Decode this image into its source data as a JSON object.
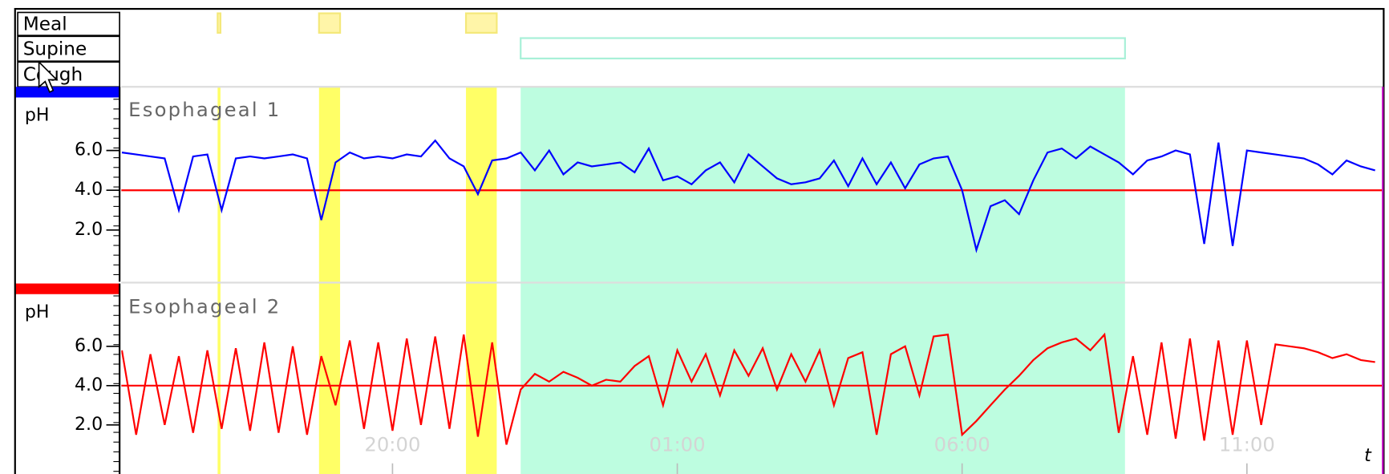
{
  "event_rows": [
    {
      "label": "Meal",
      "intervals": [
        [
          16.93,
          16.98
        ],
        [
          18.71,
          19.08
        ],
        [
          21.29,
          21.83
        ]
      ]
    },
    {
      "label": "Supine",
      "intervals": [
        [
          22.25,
          32.86
        ]
      ]
    },
    {
      "label": "Cough",
      "intervals": []
    }
  ],
  "chart_data": [
    {
      "type": "line",
      "title": "Esophageal 1",
      "ylabel": "pH",
      "x": [
        15.25,
        15.5,
        15.75,
        16,
        16.25,
        16.5,
        16.75,
        17,
        17.25,
        17.5,
        17.75,
        18,
        18.25,
        18.5,
        18.75,
        19,
        19.25,
        19.5,
        19.75,
        20,
        20.25,
        20.5,
        20.75,
        21,
        21.25,
        21.5,
        21.75,
        22,
        22.25,
        22.5,
        22.75,
        23,
        23.25,
        23.5,
        23.75,
        24,
        24.25,
        24.5,
        24.75,
        25,
        25.25,
        25.5,
        25.75,
        26,
        26.25,
        26.5,
        26.75,
        27,
        27.25,
        27.5,
        27.75,
        28,
        28.25,
        28.5,
        28.75,
        29,
        29.25,
        29.5,
        29.75,
        30,
        30.25,
        30.5,
        30.75,
        31,
        31.25,
        31.5,
        31.75,
        32,
        32.25,
        32.5,
        32.75,
        33,
        33.25,
        33.5,
        33.75,
        34,
        34.25,
        34.5,
        34.75,
        35,
        35.25,
        35.5,
        35.75,
        36,
        36.25,
        36.5,
        36.75,
        37,
        37.25
      ],
      "series": [
        {
          "color": "#0000ff",
          "values": [
            5.9,
            5.8,
            5.7,
            5.6,
            3.0,
            5.7,
            5.8,
            3.0,
            5.6,
            5.7,
            5.6,
            5.7,
            5.8,
            5.6,
            2.5,
            5.4,
            5.9,
            5.6,
            5.7,
            5.6,
            5.8,
            5.7,
            6.5,
            5.6,
            5.2,
            3.8,
            5.5,
            5.6,
            5.9,
            5.0,
            6.0,
            4.8,
            5.4,
            5.2,
            5.3,
            5.4,
            4.9,
            6.1,
            4.5,
            4.7,
            4.3,
            5.0,
            5.4,
            4.4,
            5.8,
            5.2,
            4.6,
            4.3,
            4.4,
            4.6,
            5.5,
            4.2,
            5.6,
            4.3,
            5.4,
            4.1,
            5.3,
            5.6,
            5.7,
            4.0,
            1.0,
            3.2,
            3.5,
            2.8,
            4.5,
            5.9,
            6.1,
            5.6,
            6.2,
            5.8,
            5.4,
            4.8,
            5.5,
            5.7,
            6.0,
            5.8,
            1.3,
            6.4,
            1.2,
            6.0,
            5.9,
            5.8,
            5.7,
            5.6,
            5.3,
            4.8,
            5.5,
            5.2,
            5.0
          ]
        }
      ],
      "xlim": [
        15.24,
        37.37
      ],
      "ylim": [
        -0.6,
        9.2
      ],
      "yticks": [
        {
          "value": 2,
          "label": "2.0"
        },
        {
          "value": 4,
          "label": "4.0"
        },
        {
          "value": 6,
          "label": "6.0"
        }
      ],
      "threshold": 4,
      "threshold_color": "#ff0000",
      "band_color": "#0000ff"
    },
    {
      "type": "line",
      "title": "Esophageal 2",
      "ylabel": "pH",
      "xlabel": "t",
      "x": [
        15.25,
        15.5,
        15.75,
        16,
        16.25,
        16.5,
        16.75,
        17,
        17.25,
        17.5,
        17.75,
        18,
        18.25,
        18.5,
        18.75,
        19,
        19.25,
        19.5,
        19.75,
        20,
        20.25,
        20.5,
        20.75,
        21,
        21.25,
        21.5,
        21.75,
        22,
        22.25,
        22.5,
        22.75,
        23,
        23.25,
        23.5,
        23.75,
        24,
        24.25,
        24.5,
        24.75,
        25,
        25.25,
        25.5,
        25.75,
        26,
        26.25,
        26.5,
        26.75,
        27,
        27.25,
        27.5,
        27.75,
        28,
        28.25,
        28.5,
        28.75,
        29,
        29.25,
        29.5,
        29.75,
        30,
        30.25,
        30.5,
        30.75,
        31,
        31.25,
        31.5,
        31.75,
        32,
        32.25,
        32.5,
        32.75,
        33,
        33.25,
        33.5,
        33.75,
        34,
        34.25,
        34.5,
        34.75,
        35,
        35.25,
        35.5,
        35.75,
        36,
        36.25,
        36.5,
        36.75,
        37,
        37.25
      ],
      "series": [
        {
          "color": "#ff0000",
          "values": [
            5.8,
            1.5,
            5.6,
            2.0,
            5.5,
            1.6,
            5.8,
            1.8,
            5.9,
            1.7,
            6.2,
            1.6,
            6.0,
            1.5,
            5.5,
            3.0,
            6.3,
            1.8,
            6.2,
            1.7,
            6.4,
            2.0,
            6.5,
            1.8,
            6.6,
            1.4,
            6.2,
            1.0,
            3.8,
            4.6,
            4.2,
            4.7,
            4.4,
            4.0,
            4.3,
            4.2,
            5.0,
            5.5,
            3.0,
            5.8,
            4.2,
            5.6,
            3.5,
            5.8,
            4.5,
            5.9,
            3.8,
            5.6,
            4.2,
            5.8,
            3.0,
            5.4,
            5.7,
            1.5,
            5.6,
            6.0,
            3.5,
            6.5,
            6.6,
            1.5,
            2.2,
            3.0,
            3.8,
            4.5,
            5.3,
            5.9,
            6.2,
            6.4,
            5.8,
            6.6,
            1.6,
            5.5,
            1.5,
            6.2,
            1.3,
            6.4,
            1.2,
            6.3,
            1.5,
            6.3,
            2.0,
            6.1,
            6.0,
            5.9,
            5.7,
            5.4,
            5.6,
            5.3,
            5.2
          ]
        }
      ],
      "xlim": [
        15.24,
        37.37
      ],
      "ylim": [
        -0.5,
        9.2
      ],
      "yticks": [
        {
          "value": 2,
          "label": "2.0"
        },
        {
          "value": 4,
          "label": "4.0"
        },
        {
          "value": 6,
          "label": "6.0"
        }
      ],
      "xticks": [
        {
          "value": 20,
          "label": "20:00"
        },
        {
          "value": 25,
          "label": "01:00"
        },
        {
          "value": 30,
          "label": "06:00"
        },
        {
          "value": 35,
          "label": "11:00"
        }
      ],
      "threshold": 4,
      "threshold_color": "#ff0000",
      "band_color": "#ff0000"
    }
  ]
}
